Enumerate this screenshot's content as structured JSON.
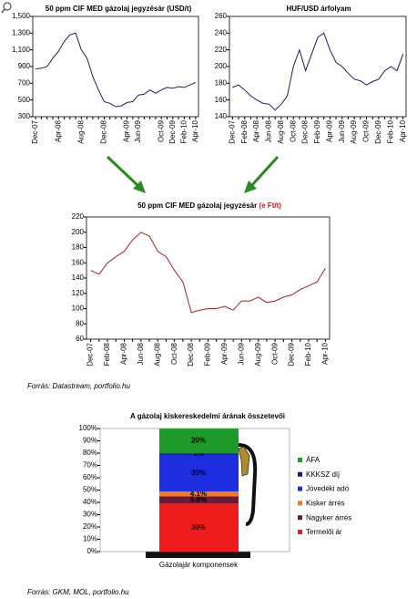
{
  "chart_data": [
    {
      "type": "line",
      "title": "50 ppm CIF MED gázolaj jegyzésár (USD/t)",
      "categories": [
        "Dec-07",
        null,
        null,
        null,
        "Apr-08",
        null,
        null,
        null,
        "Aug-08",
        null,
        null,
        null,
        "Dec-08",
        null,
        null,
        null,
        "Apr-09",
        null,
        "Jun-09",
        null,
        null,
        null,
        "Oct-09",
        null,
        "Dec-09",
        null,
        "Feb-10",
        null,
        "Apr-10"
      ],
      "series": [
        {
          "color": "#1c1c6b",
          "values": [
            870,
            880,
            900,
            1000,
            1080,
            1200,
            1280,
            1300,
            1100,
            1000,
            780,
            620,
            480,
            460,
            420,
            430,
            470,
            480,
            560,
            570,
            620,
            580,
            620,
            650,
            640,
            660,
            650,
            680,
            710
          ]
        }
      ],
      "ylim": [
        300,
        1500
      ],
      "yticks": [
        300,
        500,
        700,
        900,
        {
          "value": 1100,
          "label": "1,100"
        },
        {
          "value": 1300,
          "label": "1,300"
        },
        {
          "value": 1500,
          "label": "1,500"
        }
      ]
    },
    {
      "type": "line",
      "title": "HUF/USD árfolyam",
      "categories": [
        "Dec-07",
        null,
        "Feb-08",
        null,
        "Apr-08",
        null,
        "Jun-08",
        null,
        "Aug-08",
        null,
        "Oct-08",
        null,
        "Dec-08",
        null,
        "Feb-09",
        null,
        "Apr-09",
        null,
        "Jun-09",
        null,
        "Aug-09",
        null,
        "Oct-09",
        null,
        "Dec-09",
        null,
        "Feb-10",
        null,
        "Apr-10"
      ],
      "series": [
        {
          "color": "#1c1c6b",
          "values": [
            175,
            178,
            172,
            165,
            160,
            156,
            155,
            148,
            155,
            165,
            200,
            220,
            195,
            215,
            235,
            240,
            220,
            205,
            200,
            192,
            185,
            183,
            178,
            182,
            185,
            195,
            200,
            195,
            215
          ]
        }
      ],
      "ylim": [
        140,
        260
      ],
      "yticks": [
        140,
        160,
        180,
        200,
        220,
        240,
        260
      ]
    },
    {
      "type": "line",
      "title": "50 ppm CIF MED gázolaj jegyzésár",
      "unit": "(e Ft/t)",
      "categories": [
        "Dec-07",
        null,
        "Feb-08",
        null,
        "Apr-08",
        null,
        "Jun-08",
        null,
        "Aug-08",
        null,
        "Oct-08",
        null,
        "Dec-08",
        null,
        "Feb-09",
        null,
        "Apr-09",
        null,
        "Jun-09",
        null,
        "Aug-09",
        null,
        "Oct-09",
        null,
        "Dec-09",
        null,
        "Feb-10",
        null,
        "Apr-10"
      ],
      "series": [
        {
          "color": "#b01c1c",
          "values": [
            150,
            145,
            160,
            168,
            175,
            190,
            200,
            195,
            175,
            168,
            150,
            135,
            95,
            98,
            100,
            100,
            103,
            98,
            110,
            110,
            115,
            108,
            110,
            115,
            118,
            125,
            130,
            135,
            153
          ]
        }
      ],
      "ylim": [
        60,
        220
      ],
      "yticks": [
        60,
        80,
        100,
        120,
        140,
        160,
        180,
        200,
        220
      ]
    },
    {
      "type": "stacked_bar",
      "title": "A gázolaj kiskereskedelmi árának összetevői",
      "categories": [
        "Gázolajár komponensek"
      ],
      "series": [
        {
          "name": "Termelői ár",
          "color": "#ee1c1c",
          "values": [
            39
          ],
          "value_labels": [
            "39%"
          ]
        },
        {
          "name": "Nagyker árrés",
          "color": "#6b1a3c",
          "values": [
            5.8
          ],
          "value_labels": [
            "5.8%"
          ]
        },
        {
          "name": "Kisker árrés",
          "color": "#f47a20",
          "values": [
            4.1
          ],
          "value_labels": [
            "4.1%"
          ]
        },
        {
          "name": "Jövedéki adó",
          "color": "#1c2ee0",
          "values": [
            30
          ],
          "value_labels": [
            "30%"
          ]
        },
        {
          "name": "KKKSZ díj",
          "color": "#1a1a70",
          "values": [
            1
          ],
          "value_labels": [
            "1%"
          ]
        },
        {
          "name": "ÁFA",
          "color": "#1e9a2a",
          "values": [
            20
          ],
          "value_labels": [
            "20%"
          ]
        }
      ],
      "ylim": [
        0,
        100
      ],
      "yticks": [
        {
          "value": 0,
          "label": "0%"
        },
        {
          "value": 10,
          "label": "10%"
        },
        {
          "value": 20,
          "label": "20%"
        },
        {
          "value": 30,
          "label": "30%"
        },
        {
          "value": 40,
          "label": "40%"
        },
        {
          "value": 50,
          "label": "50%"
        },
        {
          "value": 60,
          "label": "60%"
        },
        {
          "value": 70,
          "label": "70%"
        },
        {
          "value": 80,
          "label": "80%"
        },
        {
          "value": 90,
          "label": "90%"
        },
        {
          "value": 100,
          "label": "100%"
        }
      ],
      "legend": "right"
    }
  ],
  "sources": [
    "Forrás: Datastream, portfolio.hu",
    "Forrás: GKM, MOL, portfolio.hu"
  ]
}
